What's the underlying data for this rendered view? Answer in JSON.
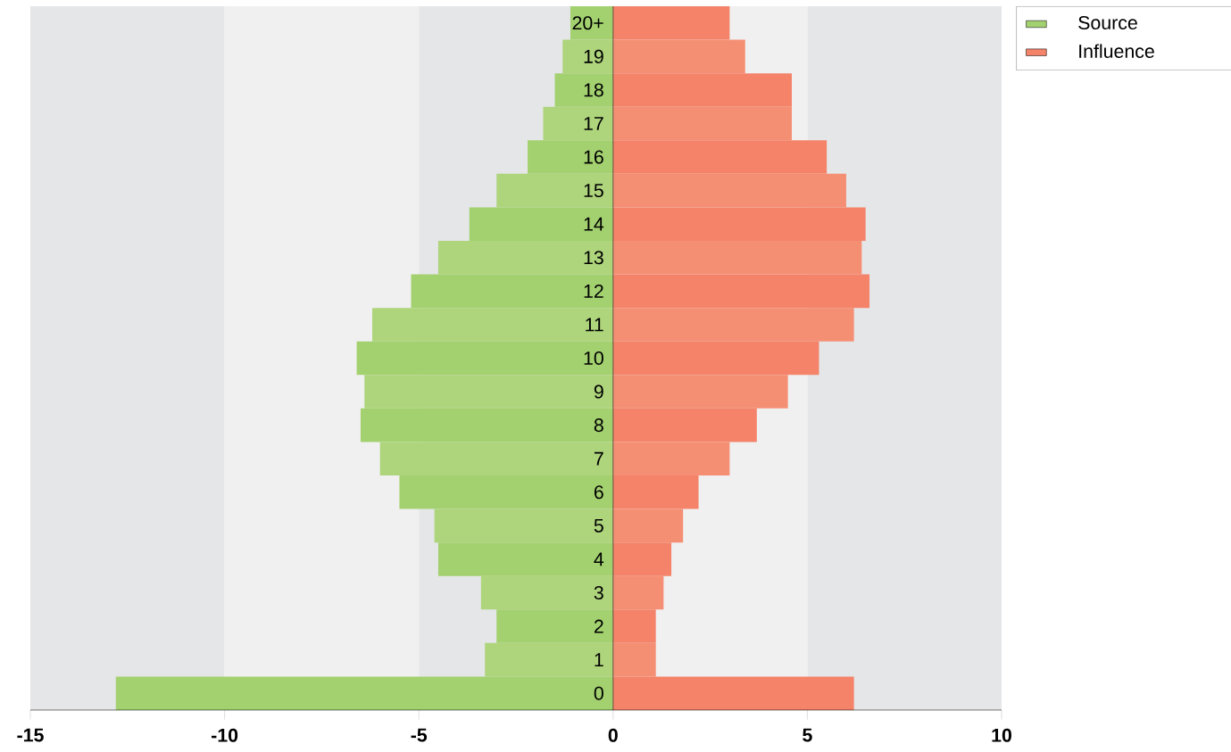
{
  "chart_data": {
    "type": "bar",
    "orientation": "horizontal",
    "categories": [
      "20+",
      "19",
      "18",
      "17",
      "16",
      "15",
      "14",
      "13",
      "12",
      "11",
      "10",
      "9",
      "8",
      "7",
      "6",
      "5",
      "4",
      "3",
      "2",
      "1",
      "0"
    ],
    "series": [
      {
        "name": "Source",
        "color": "#a3d16f",
        "colors": [
          "#a3d16f",
          "#aed47c",
          "#a3d16f",
          "#aed47c",
          "#a3d16f",
          "#aed47c",
          "#a3d16f",
          "#aed47c",
          "#a3d16f",
          "#aed47c",
          "#a3d16f",
          "#aed47c",
          "#a3d16f",
          "#aed47c",
          "#a3d16f",
          "#aed47c",
          "#a3d16f",
          "#aed47c",
          "#a3d16f",
          "#aed47c",
          "#a3d16f"
        ],
        "values": [
          -1.1,
          -1.3,
          -1.5,
          -1.8,
          -2.2,
          -3.0,
          -3.7,
          -4.5,
          -5.2,
          -6.2,
          -6.6,
          -6.4,
          -6.5,
          -6.0,
          -5.5,
          -4.6,
          -4.5,
          -3.4,
          -3.0,
          -3.3,
          -12.8
        ]
      },
      {
        "name": "Influence",
        "color": "#f4836a",
        "colors": [
          "#f4836a",
          "#f58f74",
          "#f4836a",
          "#f58f74",
          "#f4836a",
          "#f58f74",
          "#f4836a",
          "#f58f74",
          "#f4836a",
          "#f58f74",
          "#f4836a",
          "#f58f74",
          "#f4836a",
          "#f58f74",
          "#f4836a",
          "#f58f74",
          "#f4836a",
          "#f58f74",
          "#f4836a",
          "#f58f74",
          "#f4836a"
        ],
        "values": [
          3.0,
          3.4,
          4.6,
          4.6,
          5.5,
          6.0,
          6.5,
          6.4,
          6.6,
          6.2,
          5.3,
          4.5,
          3.7,
          3.0,
          2.2,
          1.8,
          1.5,
          1.3,
          1.1,
          1.1,
          6.2
        ]
      }
    ],
    "xlim": [
      -15,
      10
    ],
    "xticks": [
      {
        "value": -15,
        "label": "-15"
      },
      {
        "value": -10,
        "label": "-10"
      },
      {
        "value": -5,
        "label": "-5"
      },
      0,
      5,
      10
    ],
    "bands": [
      {
        "axis": "x",
        "from": -15,
        "to": -10,
        "color": "#e5e6e8"
      },
      {
        "axis": "x",
        "from": -10,
        "to": -5,
        "color": "#f0f0f0"
      },
      {
        "axis": "x",
        "from": -5,
        "to": 0,
        "color": "#e5e6e8"
      },
      {
        "axis": "x",
        "from": 0,
        "to": 5,
        "color": "#f0f0f0"
      },
      {
        "axis": "x",
        "from": 5,
        "to": 10,
        "color": "#e5e6e8"
      }
    ],
    "stacked": true,
    "legend": "top right",
    "grid": false
  }
}
